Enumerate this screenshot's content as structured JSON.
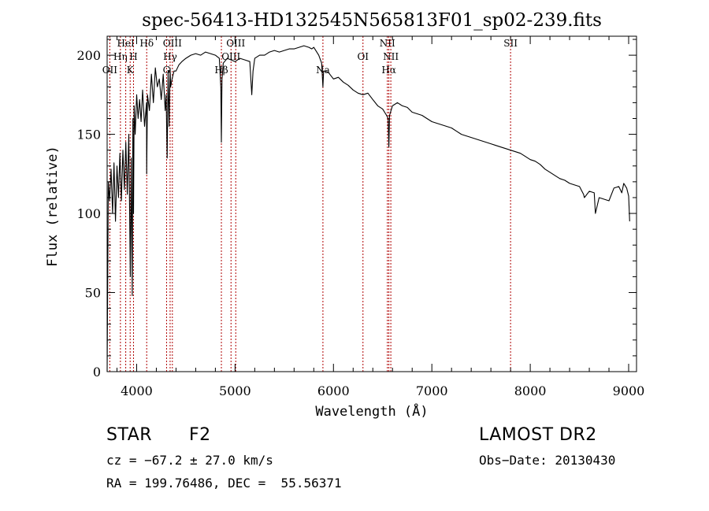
{
  "chart_data": {
    "type": "line",
    "title": "spec-56413-HD132545N565813F01_sp02-239.fits",
    "xlabel": "Wavelength (Å)",
    "ylabel": "Flux (relative)",
    "xlim": [
      3700,
      9080
    ],
    "ylim": [
      0,
      212
    ],
    "xticks": [
      4000,
      5000,
      6000,
      7000,
      8000,
      9000
    ],
    "yticks": [
      0,
      50,
      100,
      150,
      200
    ],
    "grid": false,
    "series": [
      {
        "x": [
          3700,
          3712,
          3725,
          3740,
          3755,
          3770,
          3785,
          3800,
          3815,
          3830,
          3845,
          3860,
          3875,
          3890,
          3905,
          3920,
          3935,
          3945,
          3955,
          3962,
          3968,
          3975,
          3985,
          4000,
          4015,
          4030,
          4045,
          4060,
          4080,
          4100,
          4102,
          4110,
          4130,
          4150,
          4170,
          4190,
          4210,
          4230,
          4250,
          4270,
          4290,
          4300,
          4310,
          4320,
          4330,
          4340,
          4345,
          4360,
          4380,
          4400,
          4430,
          4460,
          4500,
          4550,
          4600,
          4650,
          4700,
          4750,
          4800,
          4840,
          4855,
          4861,
          4867,
          4880,
          4920,
          4960,
          5000,
          5050,
          5100,
          5150,
          5170,
          5183,
          5200,
          5250,
          5300,
          5350,
          5400,
          5450,
          5500,
          5550,
          5600,
          5650,
          5700,
          5750,
          5780,
          5800,
          5850,
          5880,
          5893,
          5900,
          5920,
          5950,
          6000,
          6050,
          6100,
          6150,
          6200,
          6250,
          6300,
          6350,
          6400,
          6450,
          6500,
          6540,
          6556,
          6563,
          6570,
          6600,
          6650,
          6700,
          6750,
          6800,
          6850,
          6900,
          6950,
          7000,
          7050,
          7100,
          7150,
          7200,
          7250,
          7300,
          7350,
          7400,
          7450,
          7500,
          7550,
          7600,
          7650,
          7700,
          7750,
          7800,
          7850,
          7900,
          7950,
          8000,
          8050,
          8100,
          8150,
          8200,
          8250,
          8300,
          8350,
          8400,
          8450,
          8500,
          8542,
          8550,
          8600,
          8650,
          8662,
          8700,
          8750,
          8800,
          8850,
          8900,
          8930,
          8950,
          8980,
          9000,
          9010
        ],
        "values": [
          0,
          120,
          108,
          128,
          100,
          132,
          95,
          130,
          110,
          138,
          108,
          140,
          115,
          145,
          112,
          150,
          60,
          135,
          48,
          160,
          100,
          168,
          150,
          175,
          160,
          172,
          158,
          178,
          155,
          170,
          125,
          175,
          165,
          188,
          170,
          192,
          180,
          185,
          172,
          188,
          165,
          175,
          135,
          190,
          155,
          192,
          180,
          185,
          190,
          190,
          194,
          196,
          198,
          200,
          201,
          200,
          202,
          201,
          200,
          198,
          180,
          145,
          185,
          195,
          198,
          197,
          196,
          198,
          197,
          196,
          175,
          190,
          198,
          200,
          200,
          202,
          203,
          202,
          203,
          204,
          204,
          205,
          206,
          205,
          204,
          205,
          200,
          195,
          180,
          190,
          190,
          189,
          185,
          186,
          183,
          181,
          178,
          176,
          175,
          176,
          172,
          168,
          166,
          162,
          160,
          142,
          162,
          168,
          170,
          168,
          167,
          164,
          163,
          162,
          160,
          158,
          157,
          156,
          155,
          154,
          152,
          150,
          149,
          148,
          147,
          146,
          145,
          144,
          143,
          142,
          141,
          140,
          139,
          138,
          136,
          134,
          133,
          131,
          128,
          126,
          124,
          122,
          121,
          119,
          118,
          117,
          112,
          110,
          114,
          113,
          100,
          110,
          109,
          108,
          116,
          117,
          113,
          119,
          116,
          111,
          95
        ]
      }
    ],
    "line_markers": [
      {
        "label": "OII",
        "wavelength": 3727
      },
      {
        "label": "Hη",
        "wavelength": 3835
      },
      {
        "label": "HeI",
        "wavelength": 3889
      },
      {
        "label": "K",
        "wavelength": 3934
      },
      {
        "label": "H",
        "wavelength": 3968
      },
      {
        "label": "Hδ",
        "wavelength": 4102
      },
      {
        "label": "G",
        "wavelength": 4304
      },
      {
        "label": "Hγ",
        "wavelength": 4340
      },
      {
        "label": "OIII",
        "wavelength": 4363
      },
      {
        "label": "Hβ",
        "wavelength": 4861
      },
      {
        "label": "OIII",
        "wavelength": 4959
      },
      {
        "label": "OIII",
        "wavelength": 5007
      },
      {
        "label": "Na",
        "wavelength": 5893
      },
      {
        "label": "OI",
        "wavelength": 6300
      },
      {
        "label": "NII",
        "wavelength": 6548
      },
      {
        "label": "Hα",
        "wavelength": 6563
      },
      {
        "label": "NII",
        "wavelength": 6583
      },
      {
        "label": "SII",
        "wavelength": 7800
      }
    ]
  },
  "info": {
    "object_class": "STAR",
    "subclass": "F2",
    "survey": "LAMOST DR2",
    "redshift": "cz = −67.2 ± 27.0 km/s",
    "obs_date": "Obs−Date: 20130430",
    "coords": "RA = 199.76486, DEC =  55.56371"
  },
  "colors": {
    "line": "#000000",
    "marker": "#b00000",
    "background": "#ffffff"
  }
}
